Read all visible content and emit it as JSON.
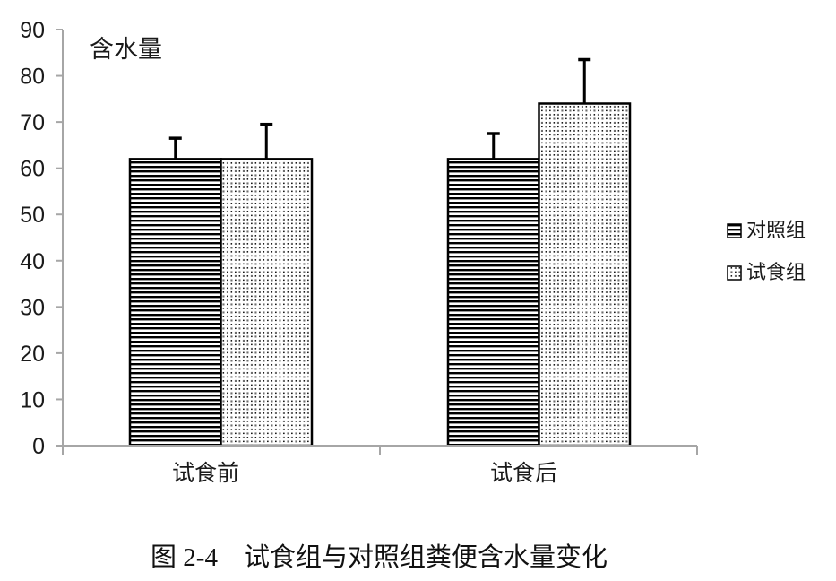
{
  "figure": {
    "caption": "图 2-4　试食组与对照组粪便含水量变化"
  },
  "chart_data": {
    "type": "bar",
    "title": "含水量",
    "ylabel": "含水量",
    "xlabel": "",
    "categories": [
      "试食前",
      "试食后"
    ],
    "series": [
      {
        "name": "对照组",
        "pattern": "horizontal-stripes",
        "values": [
          62,
          62
        ],
        "errors_plus": [
          4.5,
          5.5
        ]
      },
      {
        "name": "试食组",
        "pattern": "dots",
        "values": [
          62,
          74
        ],
        "errors_plus": [
          7.5,
          9.5
        ]
      }
    ],
    "ylim": [
      0,
      90
    ],
    "ytick_step": 10,
    "grid": false,
    "legend_position": "right",
    "error_bars": "upper-only",
    "colors": {
      "bar_fill": "#ffffff",
      "pattern_color": "#000000",
      "axis_color": "#a6a6a6",
      "text_color": "#1a1a1a"
    }
  }
}
